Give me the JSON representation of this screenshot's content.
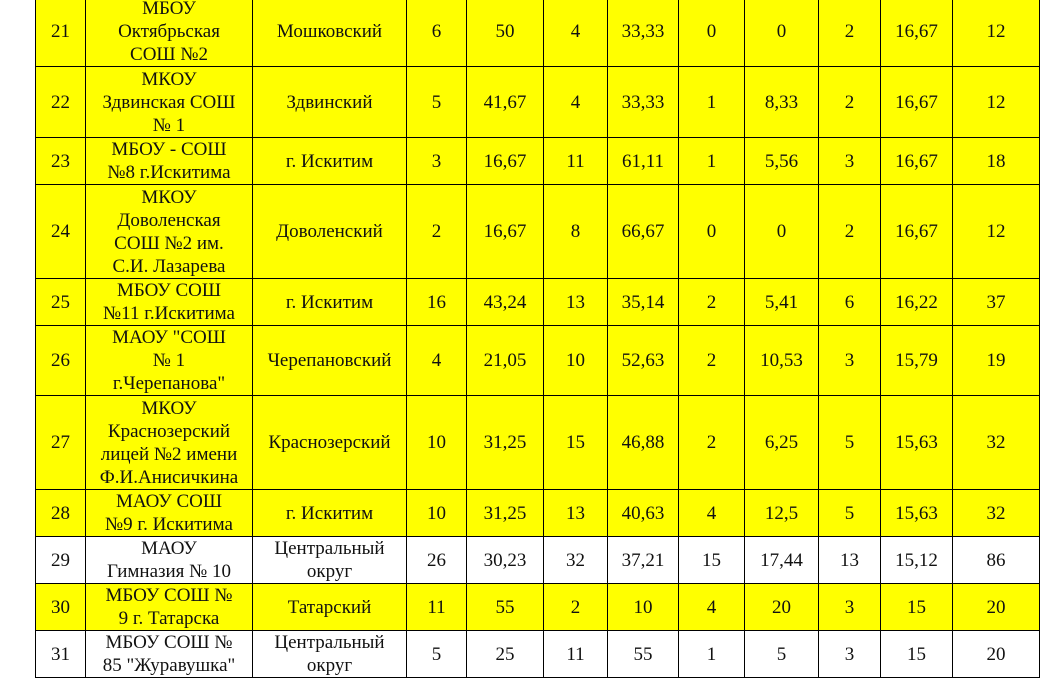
{
  "highlight_color": "#ffff00",
  "rows": [
    {
      "n": "21",
      "school": "МБОУ\nОктябрьская\nСОШ №2",
      "district": "Мошковский",
      "c1": "6",
      "p1": "50",
      "c2": "4",
      "p2": "33,33",
      "c3": "0",
      "p3": "0",
      "c4": "2",
      "p4": "16,67",
      "total": "12",
      "highlighted": true
    },
    {
      "n": "22",
      "school": "МКОУ\nЗдвинская СОШ\n№ 1",
      "district": "Здвинский",
      "c1": "5",
      "p1": "41,67",
      "c2": "4",
      "p2": "33,33",
      "c3": "1",
      "p3": "8,33",
      "c4": "2",
      "p4": "16,67",
      "total": "12",
      "highlighted": true
    },
    {
      "n": "23",
      "school": "МБОУ - СОШ\n№8 г.Искитима",
      "district": "г. Искитим",
      "c1": "3",
      "p1": "16,67",
      "c2": "11",
      "p2": "61,11",
      "c3": "1",
      "p3": "5,56",
      "c4": "3",
      "p4": "16,67",
      "total": "18",
      "highlighted": true
    },
    {
      "n": "24",
      "school": "МКОУ\nДоволенская\nСОШ №2 им.\nС.И. Лазарева",
      "district": "Доволенский",
      "c1": "2",
      "p1": "16,67",
      "c2": "8",
      "p2": "66,67",
      "c3": "0",
      "p3": "0",
      "c4": "2",
      "p4": "16,67",
      "total": "12",
      "highlighted": true
    },
    {
      "n": "25",
      "school": "МБОУ СОШ\n№11 г.Искитима",
      "district": "г. Искитим",
      "c1": "16",
      "p1": "43,24",
      "c2": "13",
      "p2": "35,14",
      "c3": "2",
      "p3": "5,41",
      "c4": "6",
      "p4": "16,22",
      "total": "37",
      "highlighted": true
    },
    {
      "n": "26",
      "school": "МАОУ \"СОШ\n№ 1\nг.Черепанова\"",
      "district": "Черепановский",
      "c1": "4",
      "p1": "21,05",
      "c2": "10",
      "p2": "52,63",
      "c3": "2",
      "p3": "10,53",
      "c4": "3",
      "p4": "15,79",
      "total": "19",
      "highlighted": true
    },
    {
      "n": "27",
      "school": "МКОУ\nКраснозерский\nлицей №2 имени\nФ.И.Анисичкина",
      "district": "Краснозерский",
      "c1": "10",
      "p1": "31,25",
      "c2": "15",
      "p2": "46,88",
      "c3": "2",
      "p3": "6,25",
      "c4": "5",
      "p4": "15,63",
      "total": "32",
      "highlighted": true
    },
    {
      "n": "28",
      "school": "МАОУ СОШ\n№9 г. Искитима",
      "district": "г. Искитим",
      "c1": "10",
      "p1": "31,25",
      "c2": "13",
      "p2": "40,63",
      "c3": "4",
      "p3": "12,5",
      "c4": "5",
      "p4": "15,63",
      "total": "32",
      "highlighted": true
    },
    {
      "n": "29",
      "school": "МАОУ\nГимназия № 10",
      "district": "Центральный\nокруг",
      "c1": "26",
      "p1": "30,23",
      "c2": "32",
      "p2": "37,21",
      "c3": "15",
      "p3": "17,44",
      "c4": "13",
      "p4": "15,12",
      "total": "86",
      "highlighted": false
    },
    {
      "n": "30",
      "school": "МБОУ СОШ №\n9 г. Татарска",
      "district": "Татарский",
      "c1": "11",
      "p1": "55",
      "c2": "2",
      "p2": "10",
      "c3": "4",
      "p3": "20",
      "c4": "3",
      "p4": "15",
      "total": "20",
      "highlighted": true
    },
    {
      "n": "31",
      "school": "МБОУ СОШ №\n85 \"Журавушка\"",
      "district": "Центральный\nокруг",
      "c1": "5",
      "p1": "25",
      "c2": "11",
      "p2": "55",
      "c3": "1",
      "p3": "5",
      "c4": "3",
      "p4": "15",
      "total": "20",
      "highlighted": false
    }
  ]
}
